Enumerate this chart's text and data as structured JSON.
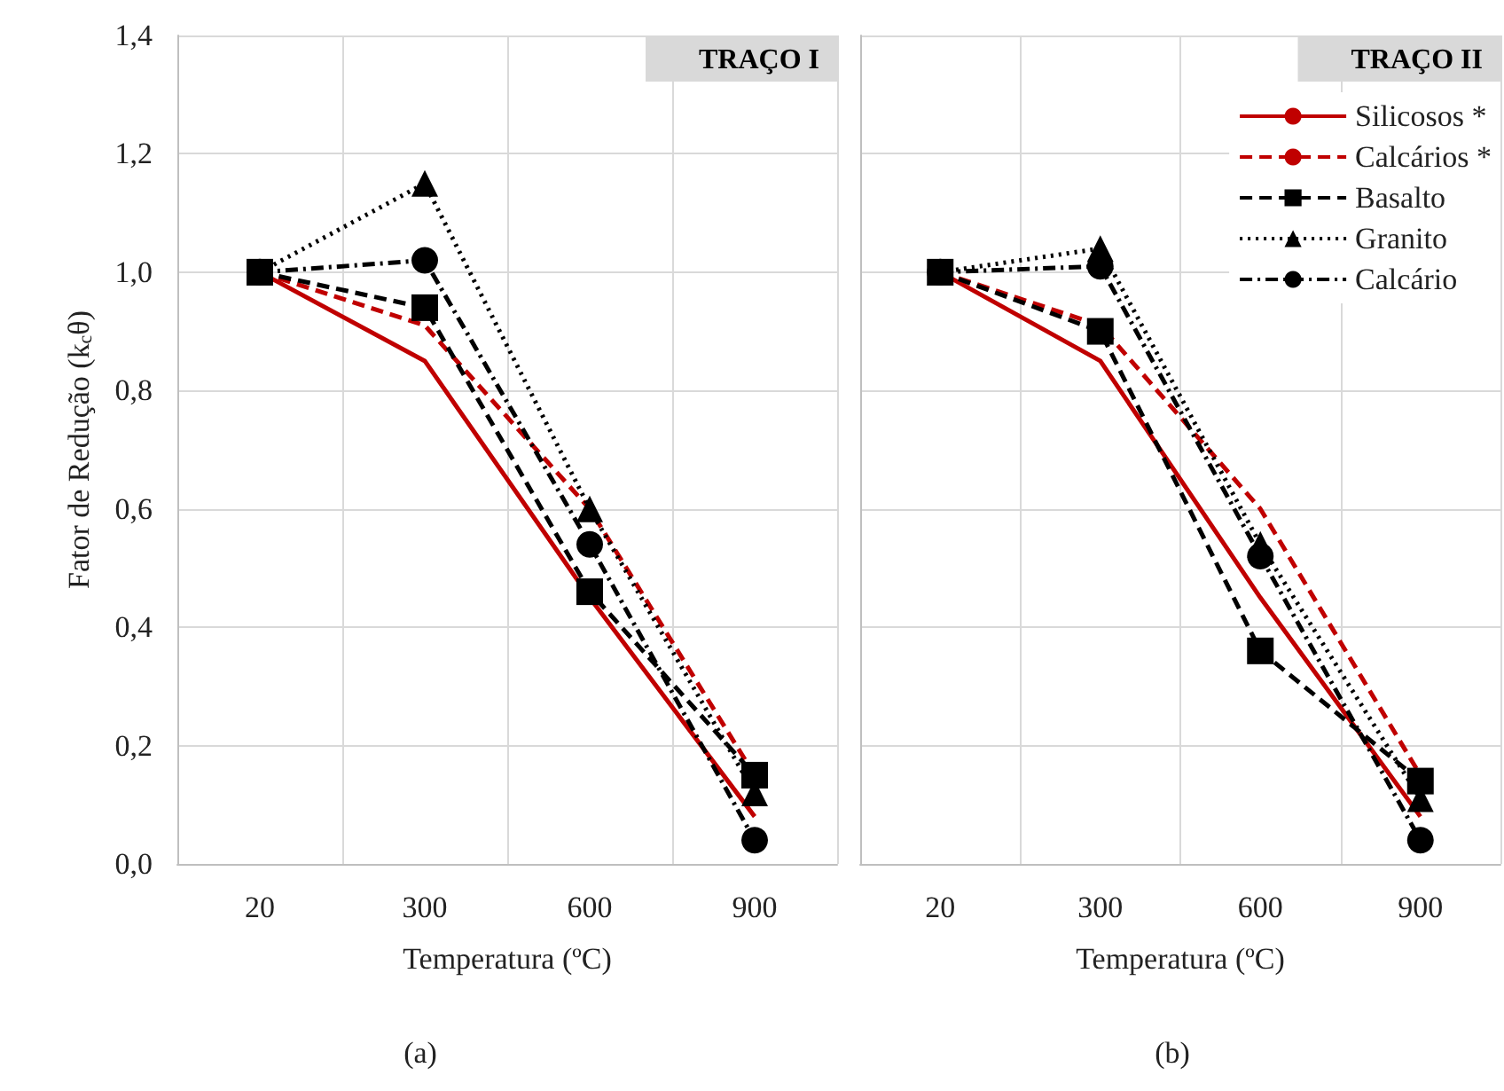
{
  "chart_data": [
    {
      "type": "line",
      "title": "TRAÇO I",
      "xlabel": "Temperatura (ºC)",
      "ylabel": "Fator de Redução (k$_{c}$θ)",
      "annotations": [
        "(a)"
      ],
      "categories": [
        "20",
        "300",
        "600",
        "900"
      ],
      "series": [
        {
          "color": "#c00000",
          "line_style": "solid",
          "marker": "none",
          "values": [
            1.0,
            0.85,
            0.45,
            0.08
          ]
        },
        {
          "color": "#c00000",
          "line_style": "dashed",
          "marker": "none",
          "values": [
            1.0,
            0.91,
            0.6,
            0.15
          ]
        },
        {
          "color": "#000000",
          "line_style": "dashed",
          "marker": "square",
          "values": [
            1.0,
            0.94,
            0.46,
            0.15
          ]
        },
        {
          "color": "#000000",
          "line_style": "dotted",
          "marker": "triangle",
          "values": [
            1.0,
            1.15,
            0.6,
            0.12
          ]
        },
        {
          "color": "#000000",
          "line_style": "dashdot",
          "marker": "circle",
          "values": [
            1.0,
            1.02,
            0.54,
            0.04
          ]
        }
      ],
      "ylim": [
        0,
        1.4
      ],
      "yticks": [
        {
          "value": 0,
          "label": "0,0"
        },
        {
          "value": 0.2,
          "label": "0,2"
        },
        {
          "value": 0.4,
          "label": "0,4"
        },
        {
          "value": 0.6,
          "label": "0,6"
        },
        {
          "value": 0.8,
          "label": "0,8"
        },
        {
          "value": 1.0,
          "label": "1,0"
        },
        {
          "value": 1.2,
          "label": "1,2"
        },
        {
          "value": 1.4,
          "label": "1,4"
        }
      ],
      "grid": true,
      "legend": false
    },
    {
      "type": "line",
      "title": "TRAÇO II",
      "xlabel": "Temperatura (ºC)",
      "annotations": [
        "(b)"
      ],
      "categories": [
        "20",
        "300",
        "600",
        "900"
      ],
      "series": [
        {
          "name": "Silicosos *",
          "color": "#c00000",
          "line_style": "solid",
          "marker": "none",
          "values": [
            1.0,
            0.85,
            0.45,
            0.08
          ]
        },
        {
          "name": "Calcários *",
          "color": "#c00000",
          "line_style": "dashed",
          "marker": "none",
          "values": [
            1.0,
            0.91,
            0.6,
            0.15
          ]
        },
        {
          "name": "Basalto",
          "color": "#000000",
          "line_style": "dashed",
          "marker": "square",
          "values": [
            1.0,
            0.9,
            0.36,
            0.14
          ]
        },
        {
          "name": "Granito",
          "color": "#000000",
          "line_style": "dotted",
          "marker": "triangle",
          "values": [
            1.0,
            1.04,
            0.54,
            0.11
          ]
        },
        {
          "name": "Calcário",
          "color": "#000000",
          "line_style": "dashdot",
          "marker": "circle",
          "values": [
            1.0,
            1.01,
            0.52,
            0.04
          ]
        }
      ],
      "ylim": [
        0,
        1.4
      ],
      "yticks": [
        0,
        0.2,
        0.4,
        0.6,
        0.8,
        1.0,
        1.2,
        1.4
      ],
      "tick_labels": "x",
      "grid": true,
      "legend": "top right"
    }
  ]
}
